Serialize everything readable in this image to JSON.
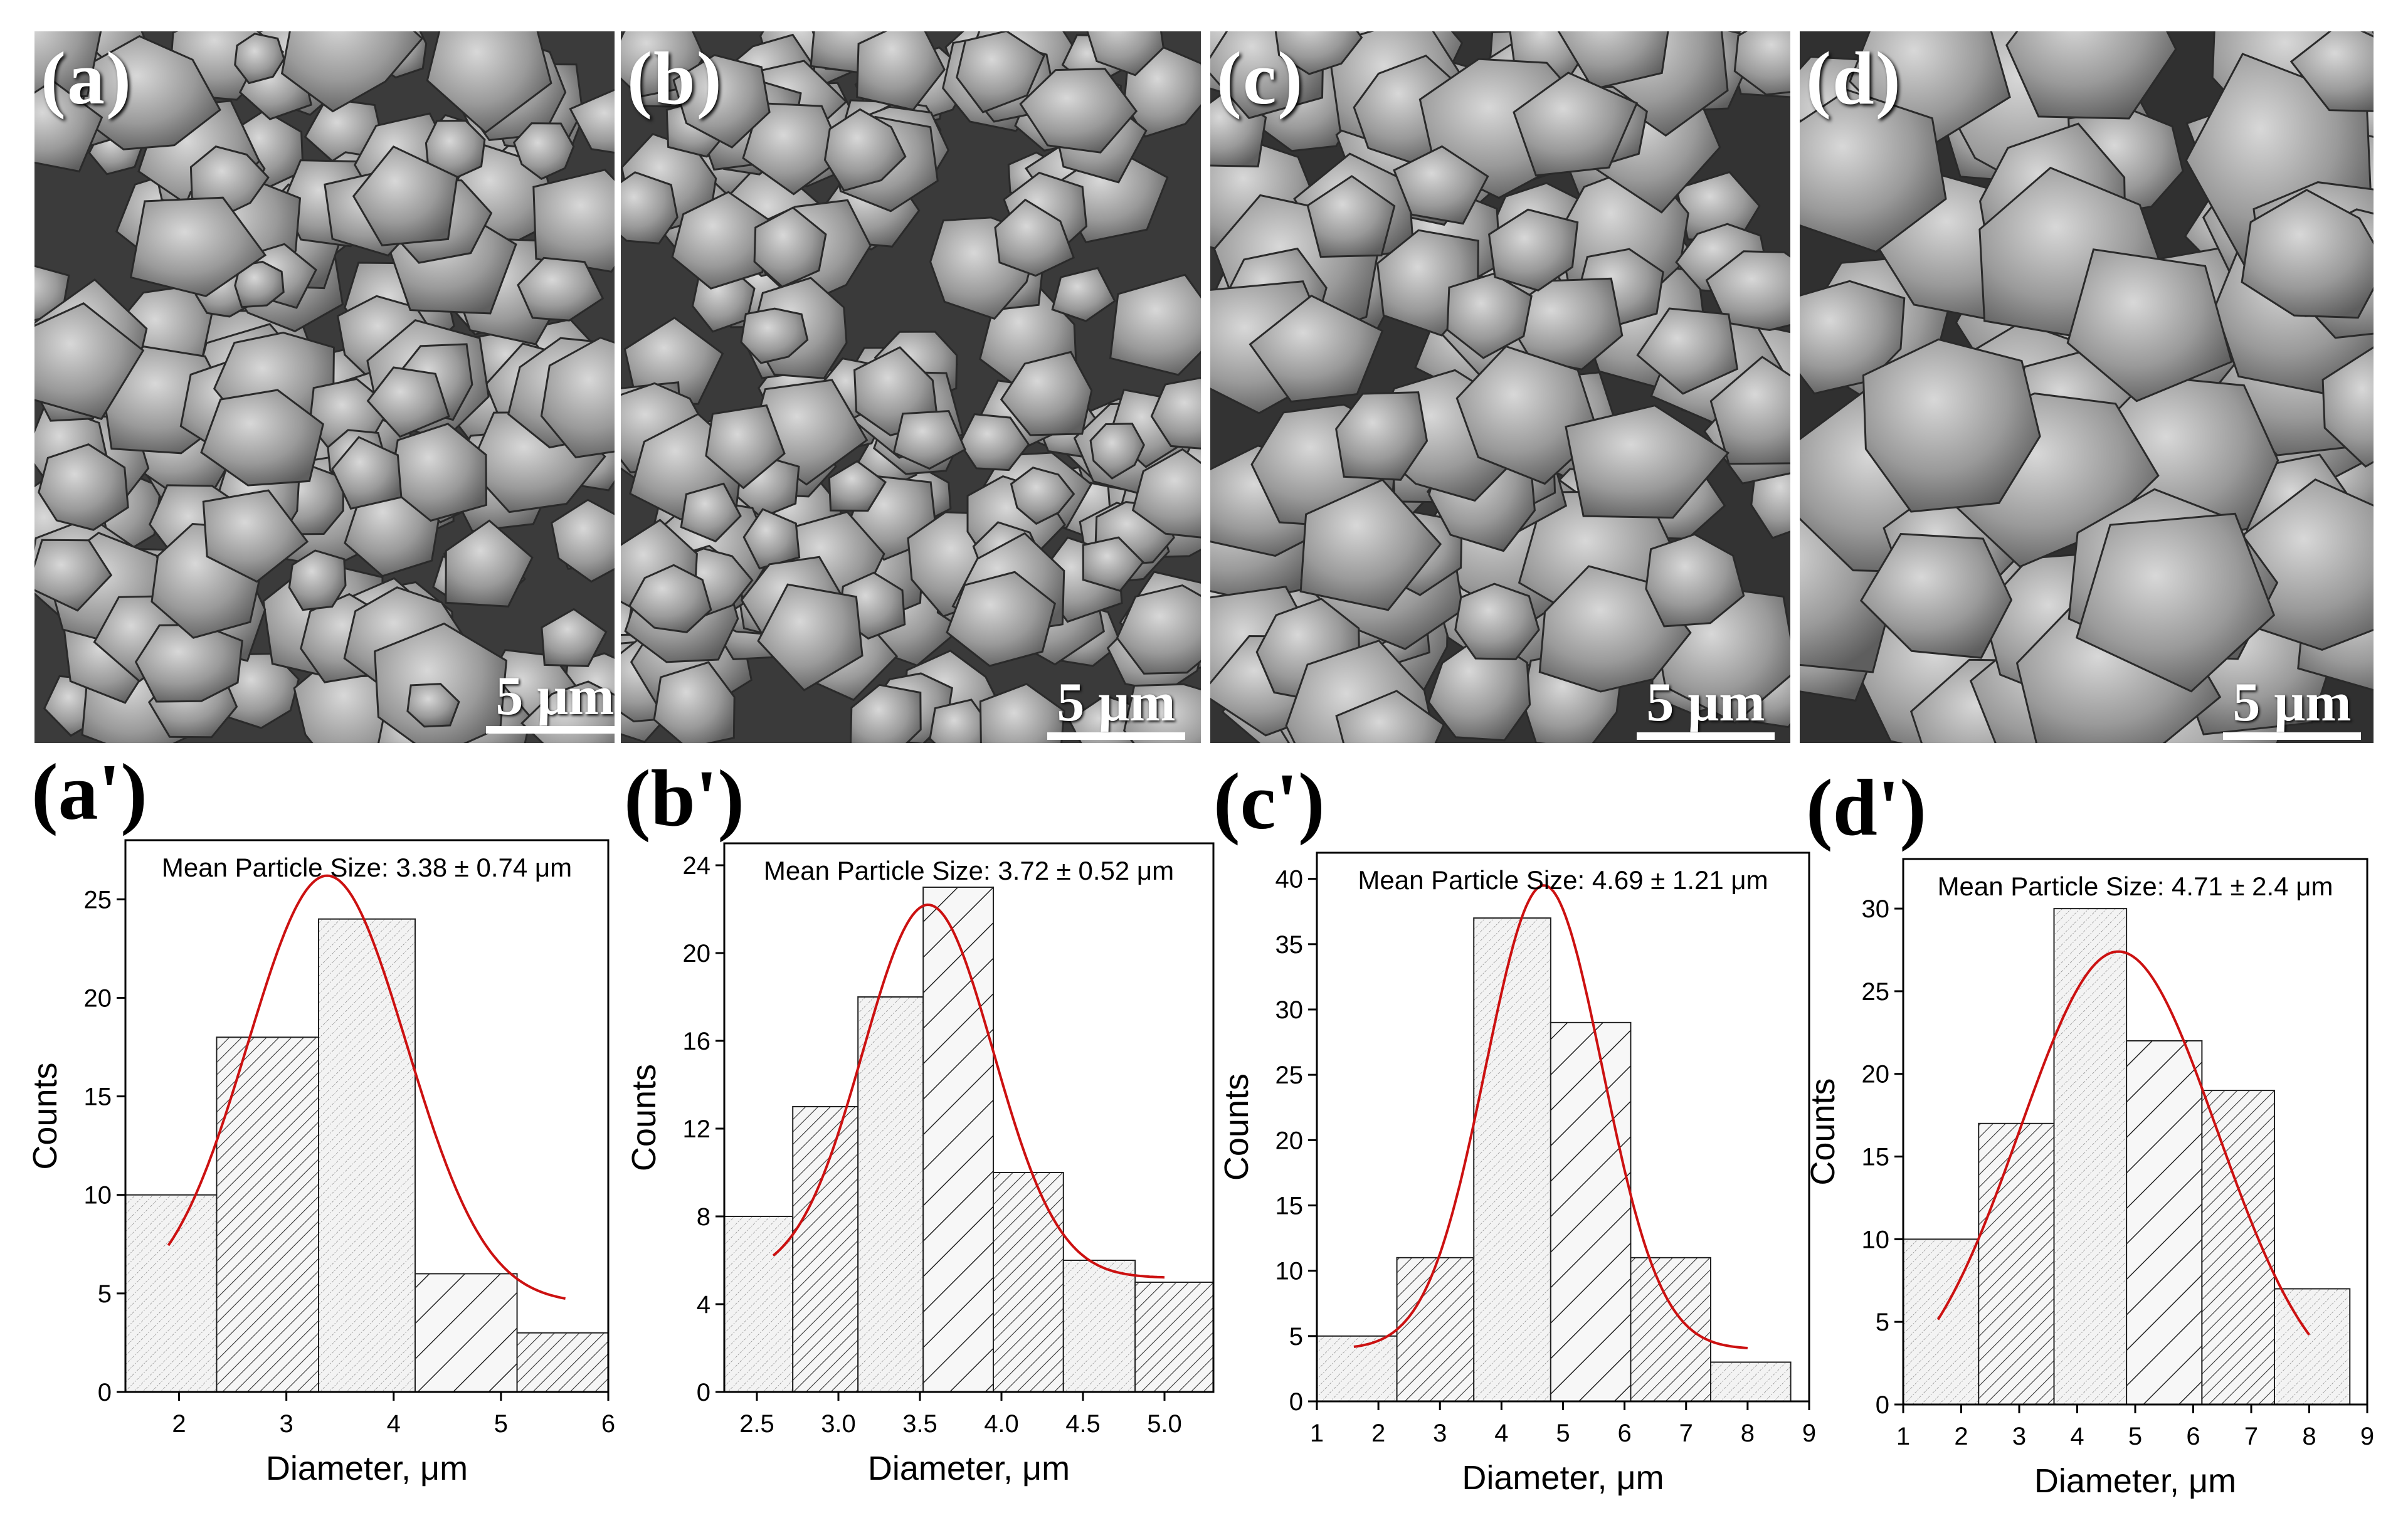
{
  "sem_panels": [
    {
      "label": "(a)",
      "scale_bar": "5 μm"
    },
    {
      "label": "(b)",
      "scale_bar": "5 μm"
    },
    {
      "label": "(c)",
      "scale_bar": "5 μm"
    },
    {
      "label": "(d)",
      "scale_bar": "5 μm"
    }
  ],
  "colors": {
    "fit_curve": "#cc1111",
    "bar_fill": "#f4f4f4",
    "axis": "#000000"
  },
  "chart_data": [
    {
      "type": "bar",
      "panel_label": "(a')",
      "title": "Mean Particle Size: 3.38 ± 0.74 μm",
      "xlabel": "Diameter, μm",
      "ylabel": "Counts",
      "xlim": [
        1.5,
        6
      ],
      "ylim": [
        0,
        28
      ],
      "xticks": [
        2,
        3,
        4,
        5,
        6
      ],
      "xtick_labels": [
        "2",
        "3",
        "4",
        "5",
        "6"
      ],
      "yticks": [
        0,
        5,
        10,
        15,
        20,
        25
      ],
      "ytick_labels": [
        "0",
        "5",
        "10",
        "15",
        "20",
        "25"
      ],
      "bins": [
        {
          "start": 1.45,
          "end": 2.35,
          "count": 10
        },
        {
          "start": 2.35,
          "end": 3.3,
          "count": 18
        },
        {
          "start": 3.3,
          "end": 4.2,
          "count": 24
        },
        {
          "start": 4.2,
          "end": 5.15,
          "count": 6
        },
        {
          "start": 5.15,
          "end": 6.0,
          "count": 3
        }
      ],
      "fit": {
        "mean": 3.38,
        "sd": 0.74,
        "peak": 26.2,
        "base": 4.5,
        "x_start": 1.9,
        "x_end": 5.6
      }
    },
    {
      "type": "bar",
      "panel_label": "(b')",
      "title": "Mean Particle Size: 3.72 ± 0.52 μm",
      "xlabel": "Diameter, μm",
      "ylabel": "Counts",
      "xlim": [
        2.3,
        5.3
      ],
      "ylim": [
        0,
        25
      ],
      "xticks": [
        2.5,
        3.0,
        3.5,
        4.0,
        4.5,
        5.0
      ],
      "xtick_labels": [
        "2.5",
        "3.0",
        "3.5",
        "4.0",
        "4.5",
        "5.0"
      ],
      "yticks": [
        0,
        4,
        8,
        12,
        16,
        20,
        24
      ],
      "ytick_labels": [
        "0",
        "4",
        "8",
        "12",
        "16",
        "20",
        "24"
      ],
      "bins": [
        {
          "start": 2.3,
          "end": 2.72,
          "count": 8
        },
        {
          "start": 2.72,
          "end": 3.12,
          "count": 13
        },
        {
          "start": 3.12,
          "end": 3.52,
          "count": 18
        },
        {
          "start": 3.52,
          "end": 3.95,
          "count": 23
        },
        {
          "start": 3.95,
          "end": 4.38,
          "count": 10
        },
        {
          "start": 4.38,
          "end": 4.82,
          "count": 6
        },
        {
          "start": 4.82,
          "end": 5.3,
          "count": 5
        }
      ],
      "fit": {
        "mean": 3.55,
        "sd": 0.4,
        "peak": 22.2,
        "base": 5.2,
        "x_start": 2.6,
        "x_end": 5.0
      }
    },
    {
      "type": "bar",
      "panel_label": "(c')",
      "title": "Mean Particle Size: 4.69 ± 1.21 μm",
      "xlabel": "Diameter, μm",
      "ylabel": "Counts",
      "xlim": [
        1,
        9
      ],
      "ylim": [
        0,
        42
      ],
      "xticks": [
        1,
        2,
        3,
        4,
        5,
        6,
        7,
        8,
        9
      ],
      "xtick_labels": [
        "1",
        "2",
        "3",
        "4",
        "5",
        "6",
        "7",
        "8",
        "9"
      ],
      "yticks": [
        0,
        5,
        10,
        15,
        20,
        25,
        30,
        35,
        40
      ],
      "ytick_labels": [
        "0",
        "5",
        "10",
        "15",
        "20",
        "25",
        "30",
        "35",
        "40"
      ],
      "bins": [
        {
          "start": 1.0,
          "end": 2.3,
          "count": 5
        },
        {
          "start": 2.3,
          "end": 3.55,
          "count": 11
        },
        {
          "start": 3.55,
          "end": 4.8,
          "count": 37
        },
        {
          "start": 4.8,
          "end": 6.1,
          "count": 29
        },
        {
          "start": 6.1,
          "end": 7.4,
          "count": 11
        },
        {
          "start": 7.4,
          "end": 8.7,
          "count": 3
        }
      ],
      "fit": {
        "mean": 4.69,
        "sd": 0.95,
        "peak": 39.5,
        "base": 4.0,
        "x_start": 1.6,
        "x_end": 8.0
      }
    },
    {
      "type": "bar",
      "panel_label": "(d')",
      "title": "Mean Particle Size: 4.71 ± 2.4 μm",
      "xlabel": "Diameter, μm",
      "ylabel": "Counts",
      "xlim": [
        1,
        9
      ],
      "ylim": [
        0,
        33
      ],
      "xticks": [
        1,
        2,
        3,
        4,
        5,
        6,
        7,
        8,
        9
      ],
      "xtick_labels": [
        "1",
        "2",
        "3",
        "4",
        "5",
        "6",
        "7",
        "8",
        "9"
      ],
      "yticks": [
        0,
        5,
        10,
        15,
        20,
        25,
        30
      ],
      "ytick_labels": [
        "0",
        "5",
        "10",
        "15",
        "20",
        "25",
        "30"
      ],
      "bins": [
        {
          "start": 1.0,
          "end": 2.3,
          "count": 10
        },
        {
          "start": 2.3,
          "end": 3.6,
          "count": 17
        },
        {
          "start": 3.6,
          "end": 4.85,
          "count": 30
        },
        {
          "start": 4.85,
          "end": 6.15,
          "count": 22
        },
        {
          "start": 6.15,
          "end": 7.4,
          "count": 19
        },
        {
          "start": 7.4,
          "end": 8.7,
          "count": 7
        }
      ],
      "fit": {
        "mean": 4.71,
        "sd": 1.7,
        "peak": 27.4,
        "base": 0.0,
        "x_start": 1.6,
        "x_end": 8.0
      }
    }
  ]
}
